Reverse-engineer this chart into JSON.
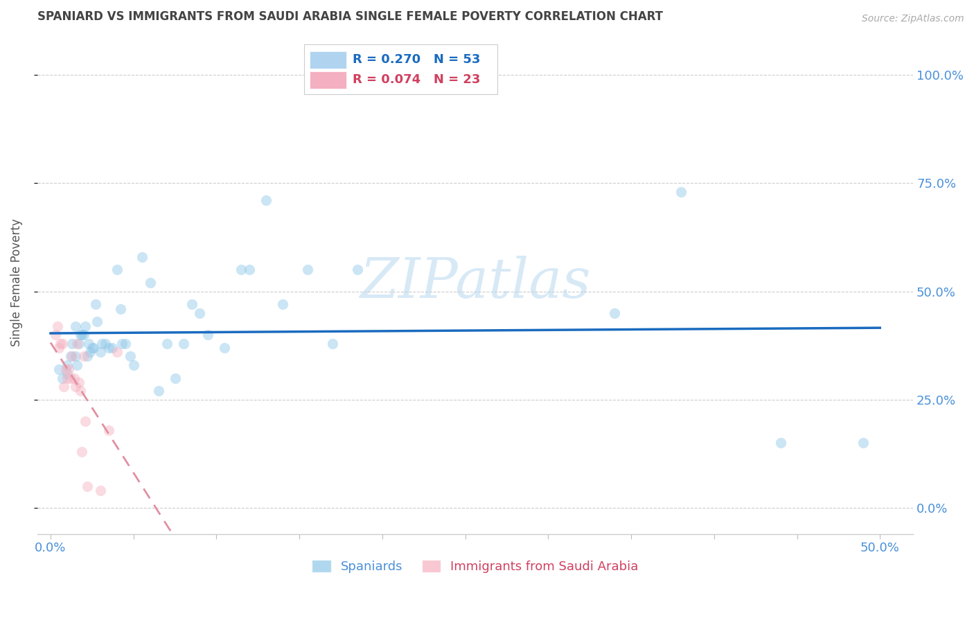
{
  "title": "SPANIARD VS IMMIGRANTS FROM SAUDI ARABIA SINGLE FEMALE POVERTY CORRELATION CHART",
  "source": "Source: ZipAtlas.com",
  "ylabel": "Single Female Poverty",
  "watermark": "ZIPatlas",
  "spaniards": {
    "label": "Spaniards",
    "color": "#8dc6e8",
    "R": 0.27,
    "N": 53,
    "x": [
      0.005,
      0.007,
      0.01,
      0.01,
      0.012,
      0.013,
      0.015,
      0.015,
      0.016,
      0.017,
      0.018,
      0.019,
      0.02,
      0.021,
      0.022,
      0.023,
      0.024,
      0.025,
      0.026,
      0.027,
      0.028,
      0.03,
      0.031,
      0.033,
      0.035,
      0.037,
      0.04,
      0.042,
      0.043,
      0.045,
      0.048,
      0.05,
      0.055,
      0.06,
      0.065,
      0.07,
      0.075,
      0.08,
      0.085,
      0.09,
      0.095,
      0.105,
      0.115,
      0.12,
      0.13,
      0.14,
      0.155,
      0.17,
      0.185,
      0.34,
      0.38,
      0.44,
      0.49
    ],
    "y": [
      0.32,
      0.3,
      0.31,
      0.33,
      0.35,
      0.38,
      0.42,
      0.35,
      0.33,
      0.38,
      0.4,
      0.4,
      0.4,
      0.42,
      0.35,
      0.38,
      0.36,
      0.37,
      0.37,
      0.47,
      0.43,
      0.36,
      0.38,
      0.38,
      0.37,
      0.37,
      0.55,
      0.46,
      0.38,
      0.38,
      0.35,
      0.33,
      0.58,
      0.52,
      0.27,
      0.38,
      0.3,
      0.38,
      0.47,
      0.45,
      0.4,
      0.37,
      0.55,
      0.55,
      0.71,
      0.47,
      0.55,
      0.38,
      0.55,
      0.45,
      0.73,
      0.15,
      0.15
    ]
  },
  "immigrants": {
    "label": "Immigrants from Saudi Arabia",
    "color": "#f4b0c0",
    "R": 0.074,
    "N": 23,
    "x": [
      0.003,
      0.004,
      0.005,
      0.006,
      0.007,
      0.008,
      0.009,
      0.01,
      0.011,
      0.012,
      0.013,
      0.014,
      0.015,
      0.016,
      0.017,
      0.018,
      0.019,
      0.02,
      0.021,
      0.022,
      0.03,
      0.035,
      0.04
    ],
    "y": [
      0.4,
      0.42,
      0.37,
      0.38,
      0.38,
      0.28,
      0.32,
      0.3,
      0.32,
      0.3,
      0.35,
      0.3,
      0.28,
      0.38,
      0.29,
      0.27,
      0.13,
      0.35,
      0.2,
      0.05,
      0.04,
      0.18,
      0.36
    ]
  },
  "xlim": [
    -0.008,
    0.52
  ],
  "ylim": [
    -0.06,
    1.1
  ],
  "yticks": [
    0.0,
    0.25,
    0.5,
    0.75,
    1.0
  ],
  "ytick_labels": [
    "0.0%",
    "25.0%",
    "50.0%",
    "75.0%",
    "100.0%"
  ],
  "xtick_vals": [
    0.0,
    0.05,
    0.1,
    0.15,
    0.2,
    0.25,
    0.3,
    0.35,
    0.4,
    0.45,
    0.5
  ],
  "xtick_labels": [
    "0.0%",
    "",
    "",
    "",
    "",
    "",
    "",
    "",
    "",
    "",
    "50.0%"
  ],
  "blue_line_color": "#1a6bbf",
  "pink_line_color": "#e090a0",
  "grid_color": "#cccccc",
  "title_color": "#444444",
  "axis_label_color": "#4a90d9",
  "marker_size": 120,
  "marker_alpha": 0.45,
  "legend_box_color_blue": "#b0d4f0",
  "legend_box_color_pink": "#f4b0c0",
  "legend_text_color_blue": "#1a6bbf",
  "legend_text_color_pink": "#d04060"
}
